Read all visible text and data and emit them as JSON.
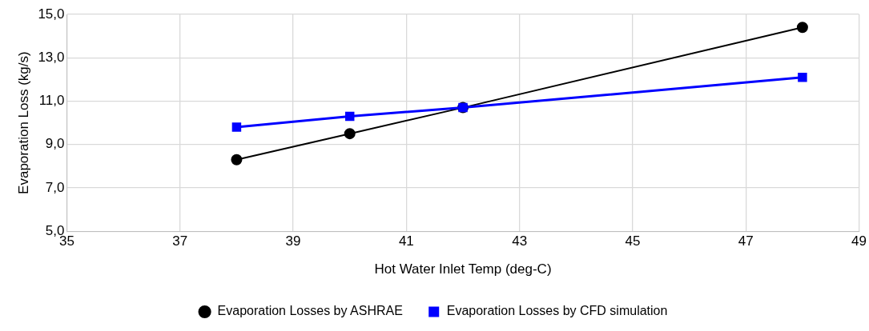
{
  "chart_data": {
    "type": "line",
    "xlabel": "Hot Water Inlet Temp (deg-C)",
    "ylabel": "Evaporation Loss (kg/s)",
    "x": [
      38,
      40,
      42,
      48
    ],
    "series": [
      {
        "name": "Evaporation Losses by ASHRAE",
        "color": "#000000",
        "marker": "circle",
        "values": [
          8.3,
          9.5,
          10.7,
          14.4
        ]
      },
      {
        "name": "Evaporation Losses by CFD simulation",
        "color": "#0000ff",
        "marker": "square",
        "values": [
          9.8,
          10.3,
          10.7,
          12.1
        ]
      }
    ],
    "xlim": [
      35,
      49
    ],
    "xticks": [
      35,
      37,
      39,
      41,
      43,
      45,
      47,
      49
    ],
    "ylim": [
      5,
      15
    ],
    "yticks": [
      {
        "value": 5,
        "label": "5,0"
      },
      {
        "value": 7,
        "label": "7,0"
      },
      {
        "value": 9,
        "label": "9,0"
      },
      {
        "value": 11,
        "label": "11,0"
      },
      {
        "value": 13,
        "label": "13,0"
      },
      {
        "value": 15,
        "label": "15,0"
      }
    ],
    "grid": true,
    "legend": "bottom"
  }
}
